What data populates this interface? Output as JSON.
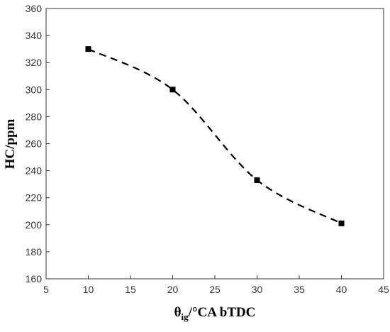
{
  "chart_data": {
    "type": "line",
    "title": "",
    "xlabel": "θig/°CA bTDC",
    "xlabel_parts": {
      "main": "θ",
      "sub": "ig",
      "rest": "/°CA bTDC"
    },
    "ylabel": "HC/ppm",
    "xlim": [
      5,
      45
    ],
    "ylim": [
      160,
      360
    ],
    "x_ticks": [
      5,
      10,
      15,
      20,
      25,
      30,
      35,
      40,
      45
    ],
    "y_ticks": [
      160,
      180,
      200,
      220,
      240,
      260,
      280,
      300,
      320,
      340,
      360
    ],
    "grid": false,
    "legend": "none",
    "series": [
      {
        "x": [
          10,
          20,
          30,
          40
        ],
        "y": [
          330,
          300,
          233,
          201
        ],
        "marker": "square",
        "line_style": "dashed",
        "color": "#000000"
      }
    ]
  }
}
